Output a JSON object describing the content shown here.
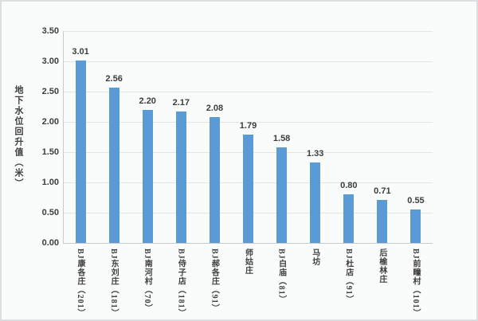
{
  "frame": {
    "background_color": "#fafbfb",
    "border_color": "#dcdfe0"
  },
  "chart_data": {
    "type": "bar",
    "title": "",
    "xlabel": "",
    "ylabel": "地下水位回升值（米）",
    "categories": [
      "BJ康各庄（201）",
      "BJ东刘庄（181）",
      "BJ南河村（70）",
      "BJ侍子店（181）",
      "BJ郝各庄（91）",
      "师姑庄",
      "BJ白庙（81）",
      "马坊",
      "BJ杜店（91）",
      "后榆林庄",
      "BJ前疃村（101）"
    ],
    "values": [
      3.01,
      2.56,
      2.2,
      2.17,
      2.08,
      1.79,
      1.58,
      1.33,
      0.8,
      0.71,
      0.55
    ],
    "data_labels": [
      "3.01",
      "2.56",
      "2.20",
      "2.17",
      "2.08",
      "1.79",
      "1.58",
      "1.33",
      "0.80",
      "0.71",
      "0.55"
    ],
    "ylim": [
      0,
      3.5
    ],
    "ytick_step": 0.5,
    "yticks": [
      "0.00",
      "0.50",
      "1.00",
      "1.50",
      "2.00",
      "2.50",
      "3.00",
      "3.50"
    ],
    "grid": true,
    "legend": false,
    "bar_color": "#5b9bd5",
    "gridline_color": "#e2e5e6",
    "axis_color": "#c6cacc",
    "text_color": "#3d3d3d"
  }
}
